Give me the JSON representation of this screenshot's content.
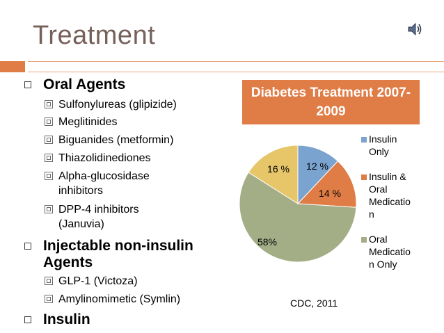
{
  "slide": {
    "title": "Treatment"
  },
  "bullets": {
    "oral_agents": "Oral Agents",
    "oral_items": [
      "Sulfonylureas (glipizide)",
      "Meglitinides",
      "Biguanides (metformin)",
      "Thiazolidinediones",
      "Alpha-glucosidase inhibitors",
      "DPP-4 inhibitors (Januvia)"
    ],
    "injectable": "Injectable non-insulin Agents",
    "injectable_items": [
      "GLP-1 (Victoza)",
      "Amylinomimetic (Symlin)"
    ],
    "insulin": "Insulin"
  },
  "colors": {
    "accent": "#e07c45",
    "title": "#76605a",
    "insulin_only": "#7aa3cf",
    "insulin_oral": "#e07c45",
    "oral_only": "#a3ad86",
    "untreated": "#e7c66a"
  },
  "chart_data": {
    "type": "pie",
    "title": "Diabetes Treatment 2007-2009",
    "slices": [
      {
        "name": "Insulin Only",
        "value": 12,
        "label": "12 %",
        "legend": true
      },
      {
        "name": "Insulin & Oral Medication",
        "value": 14,
        "label": "14 %",
        "legend": true
      },
      {
        "name": "Oral Medication Only",
        "value": 58,
        "label": "58%",
        "legend": true
      },
      {
        "name": "",
        "value": 16,
        "label": "16 %",
        "legend": false
      }
    ],
    "legend_position": "right",
    "legend_lines": [
      [
        "Insulin",
        "Only"
      ],
      [
        "Insulin &",
        "Oral",
        "Medicatio",
        "n"
      ],
      [
        "Oral",
        "Medicatio",
        "n Only"
      ]
    ],
    "source": "CDC, 2011"
  }
}
